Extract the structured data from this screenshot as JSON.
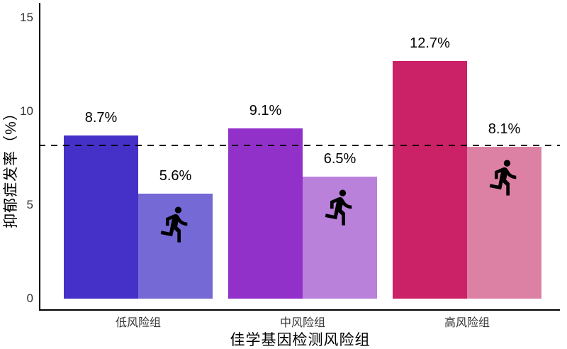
{
  "chart_data": {
    "type": "bar",
    "title": "",
    "xlabel": "佳学基因检测风险组",
    "ylabel": "抑郁症发率（%）",
    "categories": [
      "低风险组",
      "中风险组",
      "高风险组"
    ],
    "series": [
      {
        "name": "dark-bar",
        "values": [
          8.7,
          9.1,
          12.7
        ],
        "labels": [
          "8.7%",
          "9.1%",
          "12.7%"
        ],
        "colors": [
          "#4531C7",
          "#9231C9",
          "#CB2267"
        ]
      },
      {
        "name": "light-bar-with-runner",
        "values": [
          5.6,
          6.5,
          8.1
        ],
        "labels": [
          "5.6%",
          "6.5%",
          "8.1%"
        ],
        "colors": [
          "#7469D5",
          "#BA81DB",
          "#DD81A4"
        ],
        "icon": "runner-icon"
      }
    ],
    "ytick_labels": [
      "0",
      "5",
      "10",
      "15"
    ],
    "ytick_values": [
      0,
      5,
      10,
      15
    ],
    "ylim": [
      0,
      15.8
    ],
    "reference_line": {
      "value": 8.2,
      "style": "dashed",
      "color": "#000000"
    },
    "grid": false,
    "legend": "none"
  },
  "colors": {
    "background": "#FFFFFF",
    "axis": "#000000",
    "tick_text": "#333333",
    "label_text": "#000000",
    "icon": "#000000"
  }
}
